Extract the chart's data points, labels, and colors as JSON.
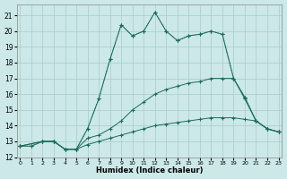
{
  "xlabel": "Humidex (Indice chaleur)",
  "bg_color": "#cce8e8",
  "grid_color": "#a8cccc",
  "line_color": "#1a6b5a",
  "xlim": [
    -0.3,
    23.3
  ],
  "ylim": [
    12.0,
    21.7
  ],
  "yticks": [
    12,
    13,
    14,
    15,
    16,
    17,
    18,
    19,
    20,
    21
  ],
  "xticks": [
    0,
    1,
    2,
    3,
    4,
    5,
    6,
    7,
    8,
    9,
    10,
    11,
    12,
    13,
    14,
    15,
    16,
    17,
    18,
    19,
    20,
    21,
    22,
    23
  ],
  "series": [
    {
      "x": [
        0,
        1,
        2,
        3,
        4,
        5,
        6,
        7,
        8,
        9,
        10,
        11,
        12,
        13,
        14,
        15,
        16,
        17,
        18,
        19,
        20,
        21,
        22,
        23
      ],
      "y": [
        12.7,
        12.7,
        13.0,
        13.0,
        12.5,
        12.5,
        13.8,
        15.7,
        18.2,
        20.4,
        19.7,
        20.0,
        21.2,
        20.0,
        19.4,
        19.7,
        19.8,
        20.0,
        19.8,
        17.0,
        15.8,
        14.3,
        13.8,
        13.6
      ],
      "linestyle": ":",
      "marker": "+"
    },
    {
      "x": [
        0,
        2,
        3,
        4,
        5,
        6,
        7,
        8,
        9,
        10,
        11,
        12,
        13,
        14,
        15,
        16,
        17,
        18,
        19,
        20,
        21,
        22,
        23
      ],
      "y": [
        12.7,
        13.0,
        13.0,
        12.5,
        12.5,
        13.8,
        15.7,
        18.2,
        20.4,
        19.7,
        20.0,
        21.2,
        20.0,
        19.4,
        19.7,
        19.8,
        20.0,
        19.8,
        17.0,
        15.8,
        14.3,
        13.8,
        13.6
      ],
      "linestyle": "-",
      "marker": "+"
    },
    {
      "x": [
        0,
        2,
        3,
        4,
        5,
        6,
        7,
        8,
        9,
        10,
        11,
        12,
        13,
        14,
        15,
        16,
        17,
        18,
        19,
        20,
        21,
        22,
        23
      ],
      "y": [
        12.7,
        13.0,
        13.0,
        12.5,
        12.5,
        13.2,
        13.4,
        13.8,
        14.3,
        15.0,
        15.5,
        16.0,
        16.3,
        16.5,
        16.7,
        16.8,
        17.0,
        17.0,
        17.0,
        15.7,
        14.3,
        13.8,
        13.6
      ],
      "linestyle": "-",
      "marker": "+"
    },
    {
      "x": [
        0,
        1,
        2,
        3,
        4,
        5,
        6,
        7,
        8,
        9,
        10,
        11,
        12,
        13,
        14,
        15,
        16,
        17,
        18,
        19,
        20,
        21,
        22,
        23
      ],
      "y": [
        12.7,
        12.7,
        13.0,
        13.0,
        12.5,
        12.5,
        12.8,
        13.0,
        13.2,
        13.4,
        13.6,
        13.8,
        14.0,
        14.1,
        14.2,
        14.3,
        14.4,
        14.5,
        14.5,
        14.5,
        14.4,
        14.3,
        13.8,
        13.6
      ],
      "linestyle": "-",
      "marker": "+"
    }
  ]
}
